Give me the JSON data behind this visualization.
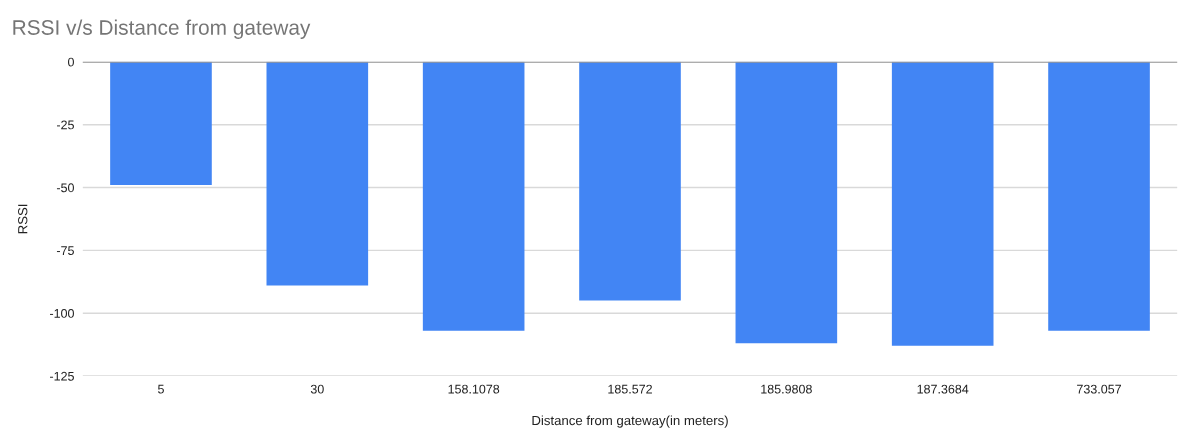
{
  "chart_data": {
    "type": "bar",
    "title": "RSSI v/s Distance from gateway",
    "xlabel": "Distance from gateway(in meters)",
    "ylabel": "RSSI",
    "categories": [
      "5",
      "30",
      "158.1078",
      "185.572",
      "185.9808",
      "187.3684",
      "733.057"
    ],
    "values": [
      -49,
      -89,
      -107,
      -95,
      -112,
      -113,
      -107
    ],
    "color": "#4285f4",
    "ylim": [
      -125,
      0
    ],
    "yticks": [
      -125,
      -100,
      -75,
      -50,
      -25,
      0
    ],
    "grid": "y",
    "legend": false
  }
}
